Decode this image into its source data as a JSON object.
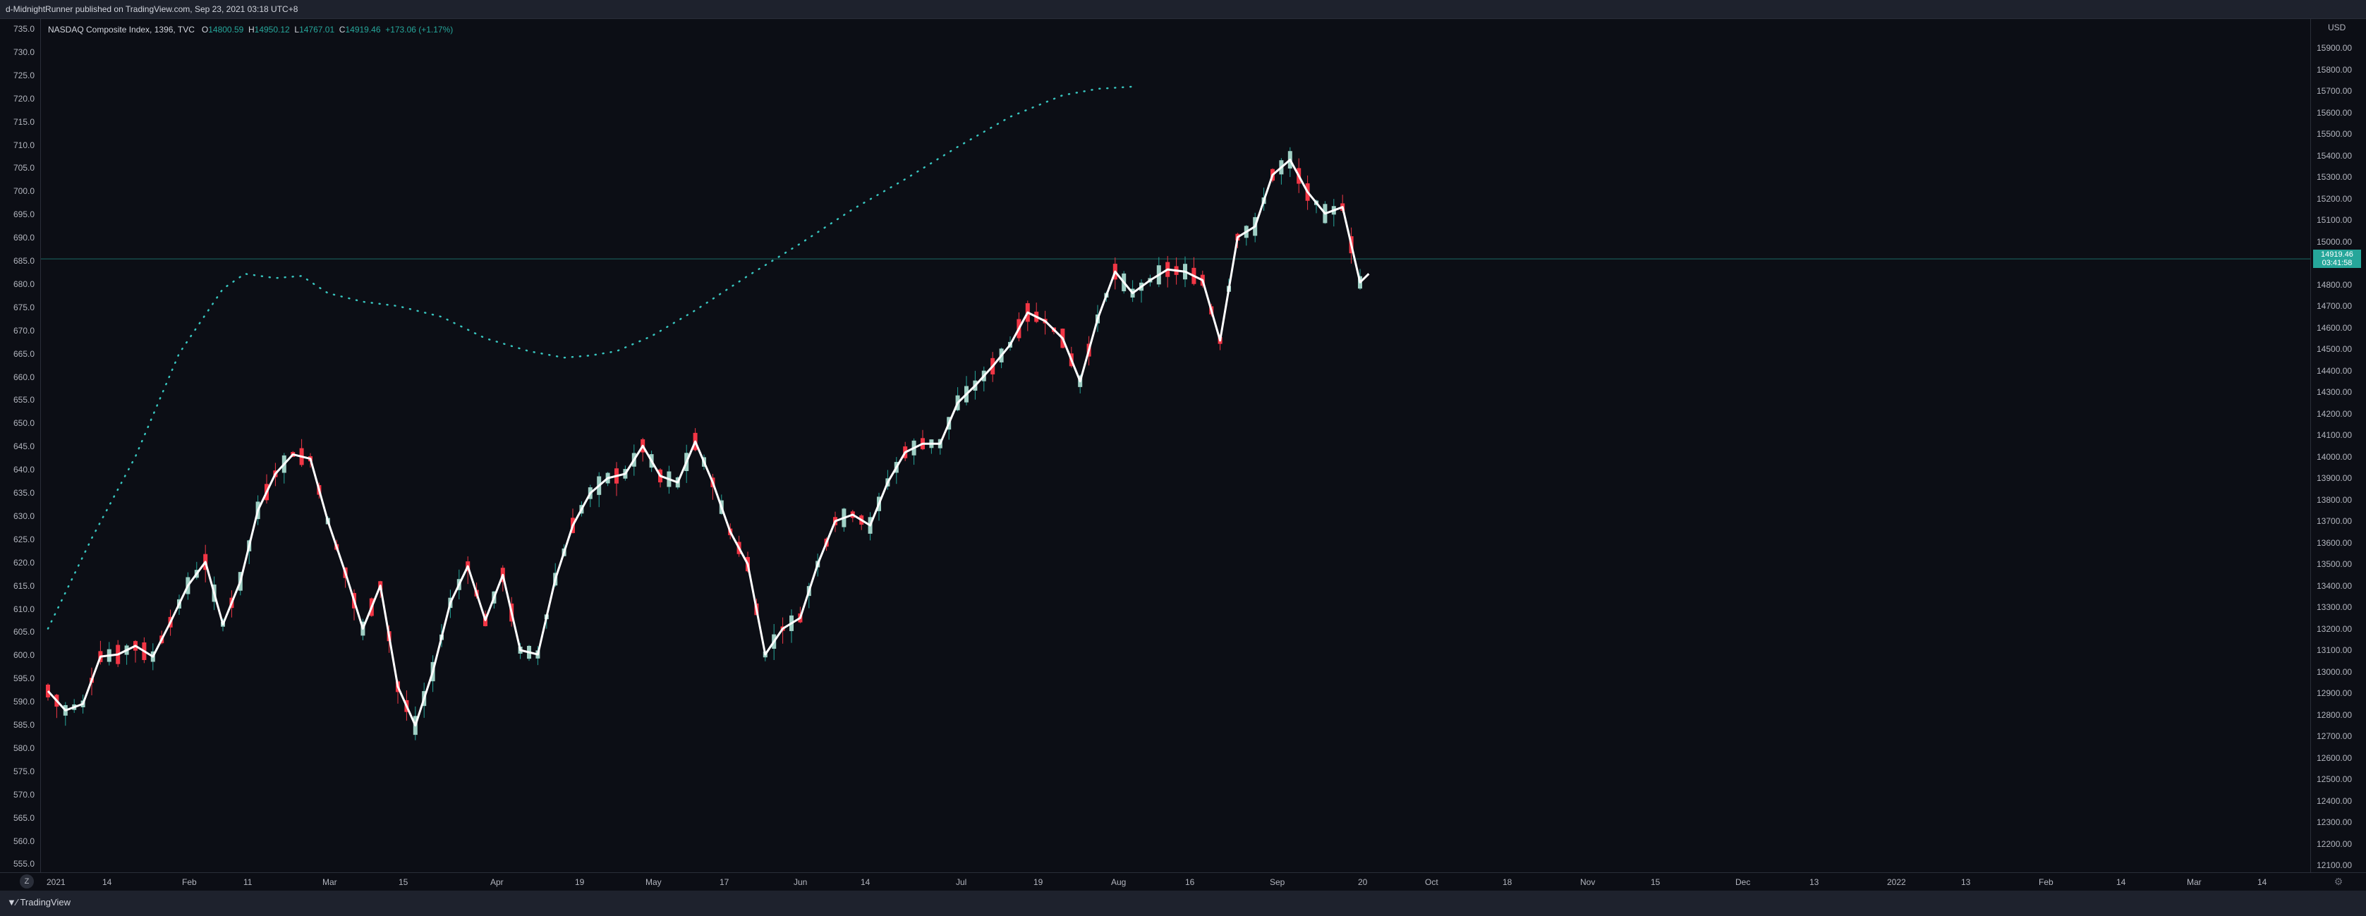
{
  "header": {
    "title": "d-MidnightRunner published on TradingView.com, Sep 23, 2021 03:18 UTC+8"
  },
  "legend": {
    "symbol": "NASDAQ Composite Index, 1396, TVC",
    "open_label": "O",
    "open": "14800.59",
    "high_label": "H",
    "high": "14950.12",
    "low_label": "L",
    "low": "14767.01",
    "close_label": "C",
    "close": "14919.46",
    "change": "+173.06 (+1.17%)"
  },
  "price_tag": {
    "price": "14919.46",
    "countdown": "03:41:58"
  },
  "currency_label": "USD",
  "tz_button": "Z",
  "footer": {
    "brand": "TradingView"
  },
  "colors": {
    "up": "#26a69a",
    "up_body": "#9fcfc4",
    "down": "#f23645",
    "ma": "#ffffff",
    "dots": "#38c6c0",
    "bg": "#0c0e15"
  },
  "chart_data": {
    "type": "candlestick",
    "left_axis": {
      "ticks": [
        "735.0",
        "730.0",
        "725.0",
        "720.0",
        "715.0",
        "710.0",
        "705.0",
        "700.0",
        "695.0",
        "690.0",
        "685.0",
        "680.0",
        "675.0",
        "670.0",
        "665.0",
        "660.0",
        "655.0",
        "650.0",
        "645.0",
        "640.0",
        "635.0",
        "630.0",
        "625.0",
        "620.0",
        "615.0",
        "610.0",
        "605.0",
        "600.0",
        "595.0",
        "590.0",
        "585.0",
        "580.0",
        "575.0",
        "570.0",
        "565.0",
        "560.0",
        "555.0"
      ]
    },
    "right_axis": {
      "ticks": [
        "15900.00",
        "15800.00",
        "15700.00",
        "15600.00",
        "15500.00",
        "15400.00",
        "15300.00",
        "15200.00",
        "15100.00",
        "15000.00",
        "14900.00",
        "14800.00",
        "14700.00",
        "14600.00",
        "14500.00",
        "14400.00",
        "14300.00",
        "14200.00",
        "14100.00",
        "14000.00",
        "13900.00",
        "13800.00",
        "13700.00",
        "13600.00",
        "13500.00",
        "13400.00",
        "13300.00",
        "13200.00",
        "13100.00",
        "13000.00",
        "12900.00",
        "12800.00",
        "12700.00",
        "12600.00",
        "12500.00",
        "12400.00",
        "12300.00",
        "12200.00",
        "12100.00"
      ],
      "range": [
        12050,
        16020
      ]
    },
    "x_ticks": [
      "2021",
      "14",
      "Feb",
      "11",
      "Mar",
      "15",
      "Apr",
      "19",
      "May",
      "17",
      "Jun",
      "14",
      "Jul",
      "19",
      "Aug",
      "16",
      "Sep",
      "20",
      "Oct",
      "18",
      "Nov",
      "15",
      "Dec",
      "13",
      "2022",
      "13",
      "Feb",
      "14",
      "Mar",
      "14"
    ],
    "current_price": 14919.46,
    "ma_path": [
      [
        0,
        12910
      ],
      [
        4,
        12820
      ],
      [
        8,
        12850
      ],
      [
        12,
        13070
      ],
      [
        16,
        13080
      ],
      [
        20,
        13120
      ],
      [
        24,
        13070
      ],
      [
        28,
        13230
      ],
      [
        32,
        13400
      ],
      [
        36,
        13510
      ],
      [
        40,
        13220
      ],
      [
        44,
        13420
      ],
      [
        48,
        13750
      ],
      [
        52,
        13920
      ],
      [
        56,
        14010
      ],
      [
        60,
        13990
      ],
      [
        64,
        13700
      ],
      [
        68,
        13460
      ],
      [
        72,
        13200
      ],
      [
        76,
        13400
      ],
      [
        80,
        12930
      ],
      [
        84,
        12750
      ],
      [
        88,
        13000
      ],
      [
        92,
        13320
      ],
      [
        96,
        13490
      ],
      [
        100,
        13240
      ],
      [
        104,
        13450
      ],
      [
        108,
        13100
      ],
      [
        112,
        13080
      ],
      [
        116,
        13430
      ],
      [
        120,
        13680
      ],
      [
        124,
        13830
      ],
      [
        128,
        13900
      ],
      [
        132,
        13920
      ],
      [
        136,
        14050
      ],
      [
        140,
        13910
      ],
      [
        144,
        13880
      ],
      [
        148,
        14070
      ],
      [
        152,
        13880
      ],
      [
        156,
        13650
      ],
      [
        160,
        13500
      ],
      [
        164,
        13080
      ],
      [
        168,
        13200
      ],
      [
        172,
        13250
      ],
      [
        176,
        13500
      ],
      [
        180,
        13700
      ],
      [
        184,
        13730
      ],
      [
        188,
        13680
      ],
      [
        192,
        13880
      ],
      [
        196,
        14020
      ],
      [
        200,
        14060
      ],
      [
        204,
        14060
      ],
      [
        208,
        14250
      ],
      [
        212,
        14330
      ],
      [
        216,
        14420
      ],
      [
        220,
        14520
      ],
      [
        224,
        14670
      ],
      [
        228,
        14630
      ],
      [
        232,
        14550
      ],
      [
        236,
        14350
      ],
      [
        240,
        14640
      ],
      [
        244,
        14860
      ],
      [
        248,
        14760
      ],
      [
        252,
        14820
      ],
      [
        256,
        14870
      ],
      [
        260,
        14860
      ],
      [
        264,
        14820
      ],
      [
        268,
        14540
      ],
      [
        272,
        15020
      ],
      [
        276,
        15070
      ],
      [
        280,
        15310
      ],
      [
        284,
        15380
      ],
      [
        288,
        15230
      ],
      [
        292,
        15130
      ],
      [
        296,
        15160
      ],
      [
        300,
        14810
      ],
      [
        302,
        14850
      ]
    ],
    "dots_path": [
      [
        0,
        13200
      ],
      [
        10,
        13620
      ],
      [
        20,
        14000
      ],
      [
        30,
        14480
      ],
      [
        40,
        14780
      ],
      [
        45,
        14850
      ],
      [
        52,
        14830
      ],
      [
        58,
        14840
      ],
      [
        64,
        14760
      ],
      [
        72,
        14720
      ],
      [
        80,
        14700
      ],
      [
        90,
        14650
      ],
      [
        100,
        14550
      ],
      [
        110,
        14490
      ],
      [
        118,
        14460
      ],
      [
        124,
        14470
      ],
      [
        130,
        14490
      ],
      [
        138,
        14560
      ],
      [
        148,
        14680
      ],
      [
        160,
        14840
      ],
      [
        172,
        14990
      ],
      [
        184,
        15150
      ],
      [
        196,
        15290
      ],
      [
        208,
        15440
      ],
      [
        220,
        15580
      ],
      [
        232,
        15680
      ],
      [
        240,
        15710
      ],
      [
        248,
        15720
      ]
    ],
    "candle_count": 302
  }
}
